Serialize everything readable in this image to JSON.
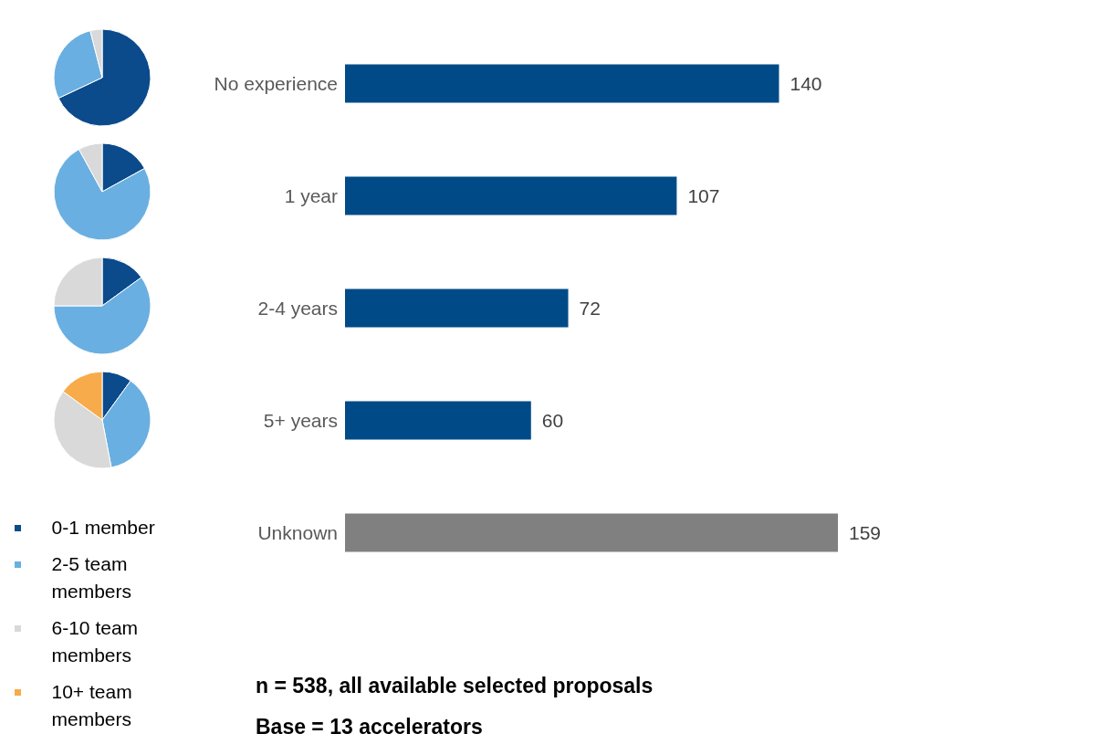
{
  "chart_data": [
    {
      "type": "bar",
      "orientation": "horizontal",
      "categories": [
        "No experience",
        "1 year",
        "2-4 years",
        "5+ years",
        "Unknown"
      ],
      "values": [
        140,
        107,
        72,
        60,
        159
      ],
      "colors": [
        "#004b87",
        "#004b87",
        "#004b87",
        "#004b87",
        "#808080"
      ],
      "data_labels": true,
      "annotations": [
        "n = 538, all available selected proposals",
        "Base = 13 accelerators"
      ]
    },
    {
      "type": "pie",
      "categories": [
        "0-1 member",
        "2-5 team members",
        "6-10 team members",
        "10+ team members"
      ],
      "values": [
        68,
        28,
        4,
        0
      ],
      "colors": [
        "#0b4a8b",
        "#6aafe1",
        "#d9d9d9",
        "#f7ab4a"
      ],
      "legend": "bottom"
    },
    {
      "type": "pie",
      "categories": [
        null,
        null,
        null,
        null
      ],
      "values": [
        17,
        75,
        8,
        0
      ],
      "colors": [
        "#0b4a8b",
        "#6aafe1",
        "#d9d9d9",
        "#f7ab4a"
      ]
    },
    {
      "type": "pie",
      "categories": [
        null,
        null,
        null,
        null
      ],
      "values": [
        15,
        60,
        25,
        0
      ],
      "colors": [
        "#0b4a8b",
        "#6aafe1",
        "#d9d9d9",
        "#f7ab4a"
      ]
    },
    {
      "type": "pie",
      "categories": [
        null,
        null,
        null,
        null
      ],
      "values": [
        10,
        37,
        38,
        15
      ],
      "colors": [
        "#0b4a8b",
        "#6aafe1",
        "#d9d9d9",
        "#f7ab4a"
      ]
    }
  ]
}
